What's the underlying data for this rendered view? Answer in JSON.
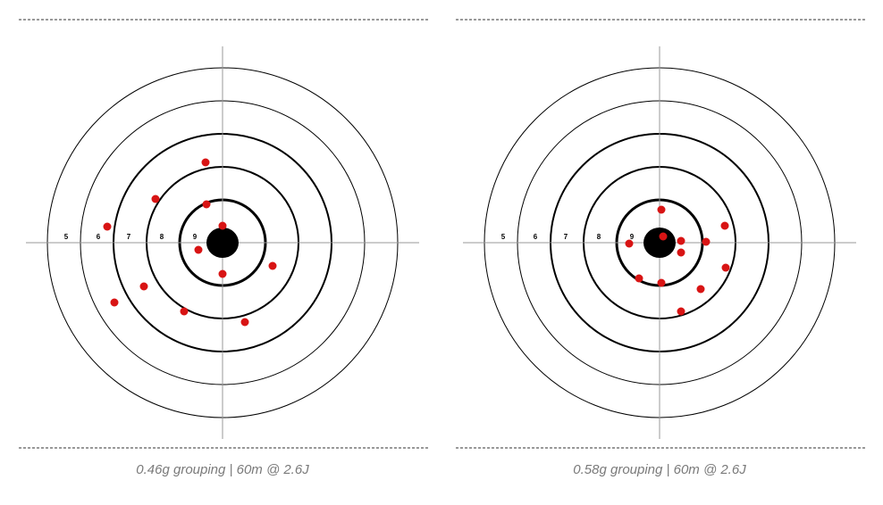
{
  "targets": [
    {
      "ring_labels": [
        "5",
        "6",
        "7",
        "8",
        "9"
      ],
      "caption": "0.46g grouping | 60m @ 2.6J"
    },
    {
      "ring_labels": [
        "5",
        "6",
        "7",
        "8",
        "9"
      ],
      "caption": "0.58g grouping | 60m @ 2.6J"
    }
  ]
}
